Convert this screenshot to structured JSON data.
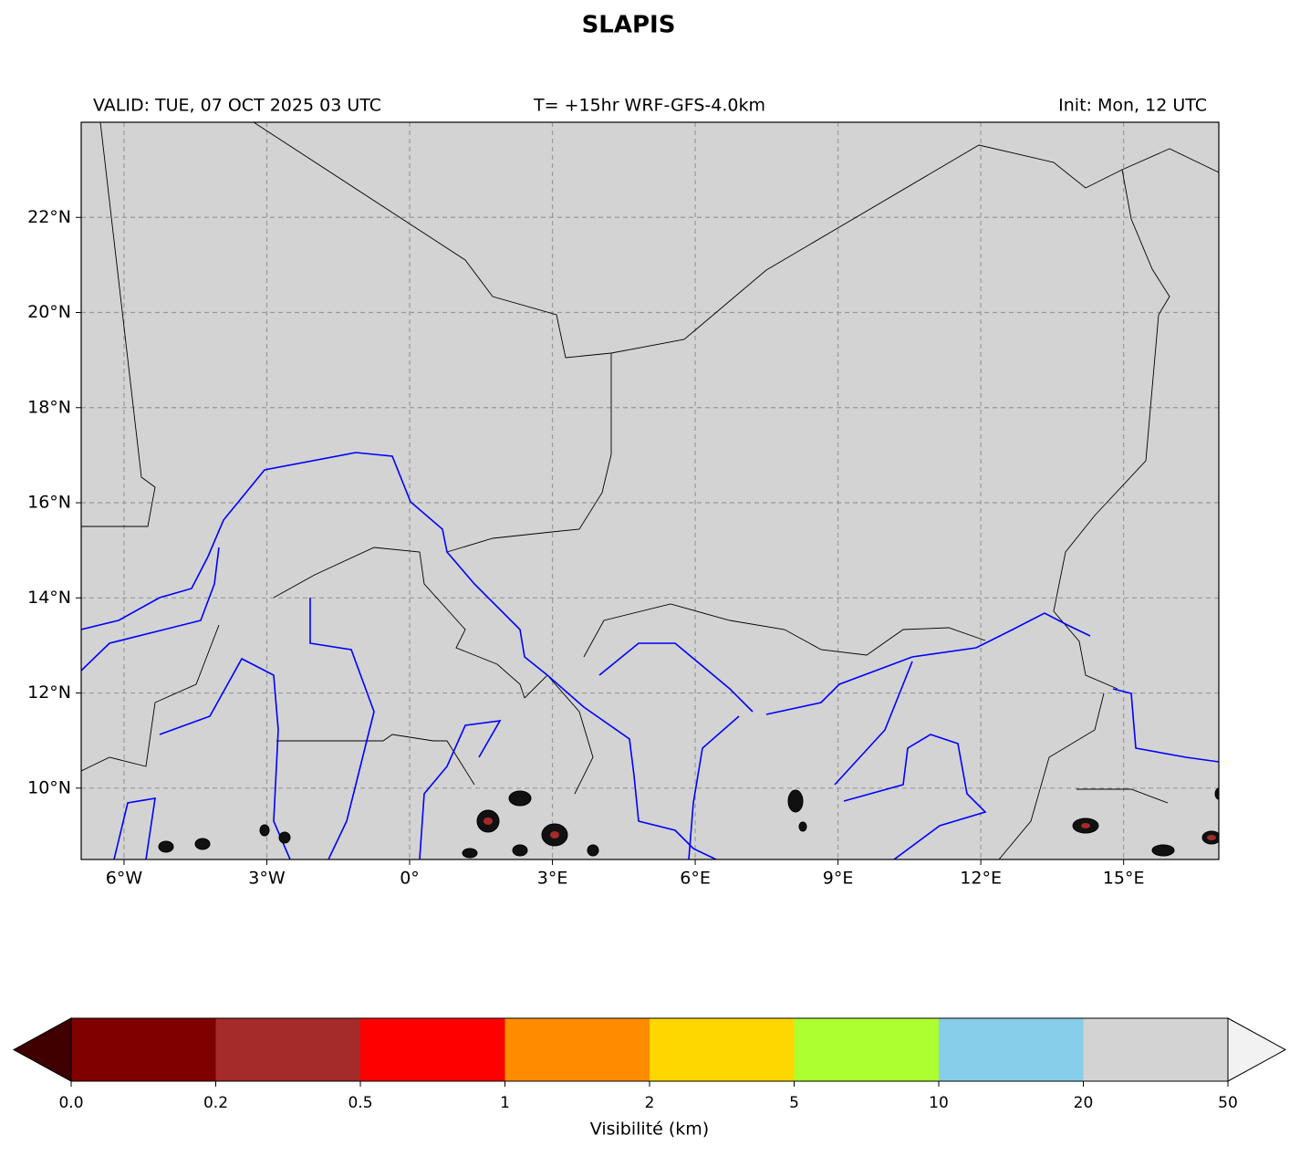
{
  "title": "SLAPIS",
  "header": {
    "valid": "VALID: TUE, 07 OCT 2025 03 UTC",
    "run": "T= +15hr WRF-GFS-4.0km",
    "init": "Init: Mon, 12 UTC"
  },
  "map": {
    "xlim": [
      -6.9,
      17
    ],
    "ylim": [
      8.5,
      24
    ],
    "xticks": [
      {
        "value": -6,
        "label": "6°W"
      },
      {
        "value": -3,
        "label": "3°W"
      },
      {
        "value": 0,
        "label": "0°"
      },
      {
        "value": 3,
        "label": "3°E"
      },
      {
        "value": 6,
        "label": "6°E"
      },
      {
        "value": 9,
        "label": "9°E"
      },
      {
        "value": 12,
        "label": "12°E"
      },
      {
        "value": 15,
        "label": "15°E"
      }
    ],
    "yticks": [
      {
        "value": 10,
        "label": "10°N"
      },
      {
        "value": 12,
        "label": "12°N"
      },
      {
        "value": 14,
        "label": "14°N"
      },
      {
        "value": 16,
        "label": "16°N"
      },
      {
        "value": 18,
        "label": "18°N"
      },
      {
        "value": 20,
        "label": "20°N"
      },
      {
        "value": 22,
        "label": "22°N"
      }
    ],
    "grid": true
  },
  "colorbar": {
    "label": "Visibilité (km)",
    "ticks": [
      {
        "value": 0,
        "label": "0.0"
      },
      0.2,
      0.5,
      1,
      2,
      5,
      10,
      20,
      50
    ],
    "colors": [
      "#800000",
      "#a52a2a",
      "#ff0000",
      "#ff8c00",
      "#ffd700",
      "#adff2f",
      "#87ceeb",
      "#d3d3d3"
    ],
    "under_color": "#400000",
    "over_color": "#f2f2f2"
  }
}
